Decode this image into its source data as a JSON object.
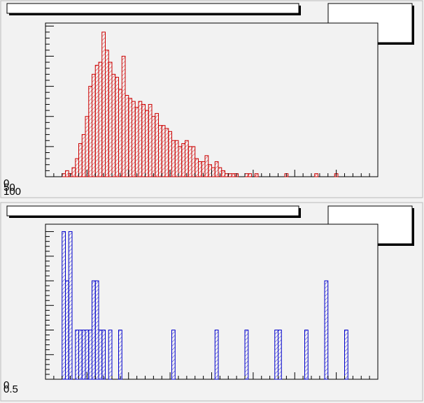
{
  "chart_data": [
    {
      "type": "histogram",
      "color": "#cc0000",
      "xlim": [
        0,
        100
      ],
      "ylim": [
        0,
        51
      ],
      "yticks": [
        0,
        10,
        20,
        30,
        40,
        50
      ],
      "corner_labels": [
        "0",
        "50",
        "100"
      ],
      "bins": [
        0,
        1,
        2,
        3,
        4,
        5,
        6,
        7,
        8,
        9,
        10,
        11,
        12,
        13,
        14,
        15,
        16,
        17,
        18,
        19,
        20,
        21,
        22,
        23,
        24,
        25,
        26,
        27,
        28,
        29,
        30,
        31,
        32,
        33,
        34,
        35,
        36,
        37,
        38,
        39,
        40,
        41,
        42,
        43,
        44,
        45,
        46,
        47,
        48,
        49,
        50,
        51,
        52,
        53,
        54,
        55,
        56,
        57,
        58,
        59,
        60,
        61,
        62,
        63,
        64,
        65,
        66,
        67,
        68,
        69,
        70,
        71,
        72,
        73,
        74,
        75,
        76,
        77,
        78,
        79,
        80,
        81,
        82,
        83,
        84,
        85,
        86,
        87,
        88,
        89,
        90,
        91,
        92,
        93,
        94,
        95,
        96,
        97,
        98,
        99,
        100
      ],
      "values": [
        0,
        0,
        0,
        0,
        0,
        1,
        2,
        1,
        3,
        6,
        11,
        14,
        20,
        30,
        34,
        37,
        38,
        48,
        42,
        38,
        34,
        33,
        29,
        40,
        27,
        26,
        25,
        23,
        25,
        24,
        22,
        24,
        20,
        21,
        17,
        17,
        16,
        15,
        12,
        12,
        10,
        11,
        12,
        10,
        10,
        6,
        5,
        5,
        7,
        4,
        3,
        5,
        3,
        2,
        1,
        1,
        1,
        1,
        0,
        0,
        1,
        1,
        0,
        1,
        0,
        0,
        0,
        0,
        0,
        0,
        0,
        0,
        1,
        0,
        0,
        0,
        0,
        0,
        0,
        0,
        0,
        1,
        0,
        0,
        0,
        0,
        0,
        1,
        0,
        0,
        0,
        0,
        0,
        0,
        0,
        0,
        0,
        0,
        0,
        0
      ]
    },
    {
      "type": "histogram",
      "color": "#0000cc",
      "xlim": [
        0,
        100
      ],
      "ylim": [
        0,
        6.3
      ],
      "yticks": [
        0,
        1,
        2,
        3,
        4,
        5,
        6
      ],
      "corner_labels": [
        "0",
        "0.5"
      ],
      "bins": [
        0,
        1,
        2,
        3,
        4,
        5,
        6,
        7,
        8,
        9,
        10,
        11,
        12,
        13,
        14,
        15,
        16,
        17,
        18,
        19,
        20,
        21,
        22,
        23,
        24,
        25,
        26,
        27,
        28,
        29,
        30,
        31,
        32,
        33,
        34,
        35,
        36,
        37,
        38,
        39,
        40,
        41,
        42,
        43,
        44,
        45,
        46,
        47,
        48,
        49,
        50,
        51,
        52,
        53,
        54,
        55,
        56,
        57,
        58,
        59,
        60,
        61,
        62,
        63,
        64,
        65,
        66,
        67,
        68,
        69,
        70,
        71,
        72,
        73,
        74,
        75,
        76,
        77,
        78,
        79,
        80,
        81,
        82,
        83,
        84,
        85,
        86,
        87,
        88,
        89,
        90,
        91,
        92,
        93,
        94,
        95,
        96,
        97,
        98,
        99,
        100
      ],
      "values": [
        0,
        0,
        0,
        0,
        0,
        6,
        4,
        6,
        0,
        2,
        2,
        2,
        2,
        2,
        4,
        4,
        2,
        2,
        0,
        2,
        0,
        0,
        2,
        0,
        0,
        0,
        0,
        0,
        0,
        0,
        0,
        0,
        0,
        0,
        0,
        0,
        0,
        0,
        2,
        0,
        0,
        0,
        0,
        0,
        0,
        0,
        0,
        0,
        0,
        0,
        0,
        2,
        0,
        0,
        0,
        0,
        0,
        0,
        0,
        0,
        2,
        0,
        0,
        0,
        0,
        0,
        0,
        0,
        0,
        2,
        2,
        0,
        0,
        0,
        0,
        0,
        0,
        0,
        2,
        0,
        0,
        0,
        0,
        0,
        4,
        0,
        0,
        0,
        0,
        0,
        2,
        0,
        0,
        0,
        0,
        0,
        0,
        0,
        0,
        0
      ]
    }
  ]
}
